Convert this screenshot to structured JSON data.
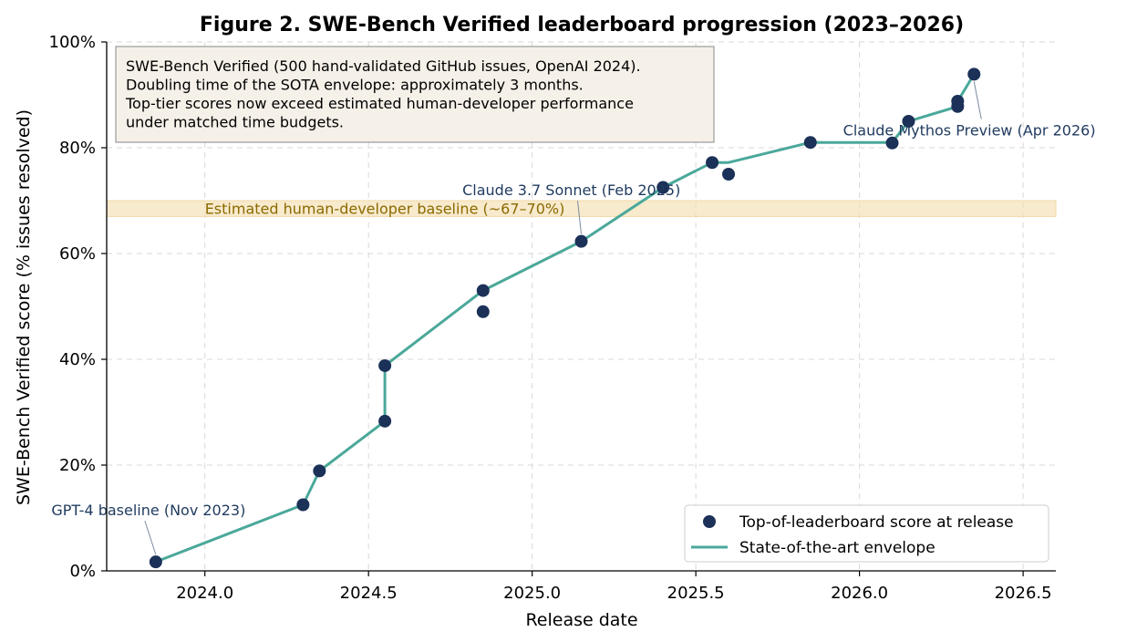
{
  "chart_data": {
    "type": "scatter",
    "title": "Figure 2. SWE-Bench Verified leaderboard progression (2023–2026)",
    "xlabel": "Release date",
    "ylabel": "SWE-Bench Verified score (% issues resolved)",
    "xlim": [
      2023.7,
      2026.6
    ],
    "ylim": [
      0,
      100
    ],
    "xticks": [
      2024.0,
      2024.5,
      2025.0,
      2025.5,
      2026.0,
      2026.5
    ],
    "xtick_labels": [
      "2024.0",
      "2024.5",
      "2025.0",
      "2025.5",
      "2026.0",
      "2026.5"
    ],
    "yticks": [
      0,
      20,
      40,
      60,
      80,
      100
    ],
    "ytick_labels": [
      "0%",
      "20%",
      "40%",
      "60%",
      "80%",
      "100%"
    ],
    "grid": true,
    "legend_position": "lower-right",
    "series": [
      {
        "name": "Top-of-leaderboard score at release",
        "kind": "scatter",
        "color": "#1b3158",
        "points": [
          {
            "x": 2023.85,
            "y": 1.7
          },
          {
            "x": 2024.3,
            "y": 12.5
          },
          {
            "x": 2024.35,
            "y": 18.9
          },
          {
            "x": 2024.55,
            "y": 28.3
          },
          {
            "x": 2024.55,
            "y": 38.8
          },
          {
            "x": 2024.85,
            "y": 49.0
          },
          {
            "x": 2024.85,
            "y": 53.0
          },
          {
            "x": 2025.15,
            "y": 62.3
          },
          {
            "x": 2025.4,
            "y": 72.5
          },
          {
            "x": 2025.55,
            "y": 77.2
          },
          {
            "x": 2025.6,
            "y": 75.0
          },
          {
            "x": 2025.85,
            "y": 81.0
          },
          {
            "x": 2026.1,
            "y": 80.9
          },
          {
            "x": 2026.15,
            "y": 85.0
          },
          {
            "x": 2026.3,
            "y": 87.8
          },
          {
            "x": 2026.3,
            "y": 88.8
          },
          {
            "x": 2026.35,
            "y": 93.9
          }
        ]
      },
      {
        "name": "State-of-the-art envelope",
        "kind": "line",
        "color": "#4aa89a",
        "points": [
          {
            "x": 2023.85,
            "y": 1.7
          },
          {
            "x": 2024.3,
            "y": 12.5
          },
          {
            "x": 2024.35,
            "y": 18.9
          },
          {
            "x": 2024.55,
            "y": 28.3
          },
          {
            "x": 2024.55,
            "y": 38.8
          },
          {
            "x": 2024.85,
            "y": 53.0
          },
          {
            "x": 2025.15,
            "y": 62.3
          },
          {
            "x": 2025.4,
            "y": 72.5
          },
          {
            "x": 2025.55,
            "y": 77.2
          },
          {
            "x": 2025.6,
            "y": 77.2
          },
          {
            "x": 2025.85,
            "y": 81.0
          },
          {
            "x": 2026.1,
            "y": 81.0
          },
          {
            "x": 2026.15,
            "y": 85.0
          },
          {
            "x": 2026.3,
            "y": 87.8
          },
          {
            "x": 2026.3,
            "y": 88.8
          },
          {
            "x": 2026.35,
            "y": 93.9
          }
        ]
      }
    ],
    "band": {
      "label": "Estimated human-developer baseline (~67–70%)",
      "y_from": 67,
      "y_to": 70,
      "color": "#f5deb0"
    },
    "annotations": [
      {
        "text": "GPT-4 baseline (Nov 2023)",
        "point": {
          "x": 2023.85,
          "y": 1.7
        },
        "text_at": {
          "x": 2023.85,
          "y": 10.5
        }
      },
      {
        "text": "Claude 3.7 Sonnet (Feb 2025)",
        "point": {
          "x": 2025.15,
          "y": 62.3
        },
        "text_at": {
          "x": 2025.12,
          "y": 71.0
        }
      },
      {
        "text": "Claude Mythos Preview (Apr 2026)",
        "point": {
          "x": 2026.35,
          "y": 93.9
        },
        "text_at": {
          "x": 2026.37,
          "y": 82.3
        }
      }
    ],
    "info_box": [
      "SWE-Bench Verified (500 hand-validated GitHub issues, OpenAI 2024).",
      "Doubling time of the SOTA envelope: approximately 3 months.",
      "Top-tier scores now exceed estimated human-developer performance",
      "under matched time budgets."
    ]
  }
}
